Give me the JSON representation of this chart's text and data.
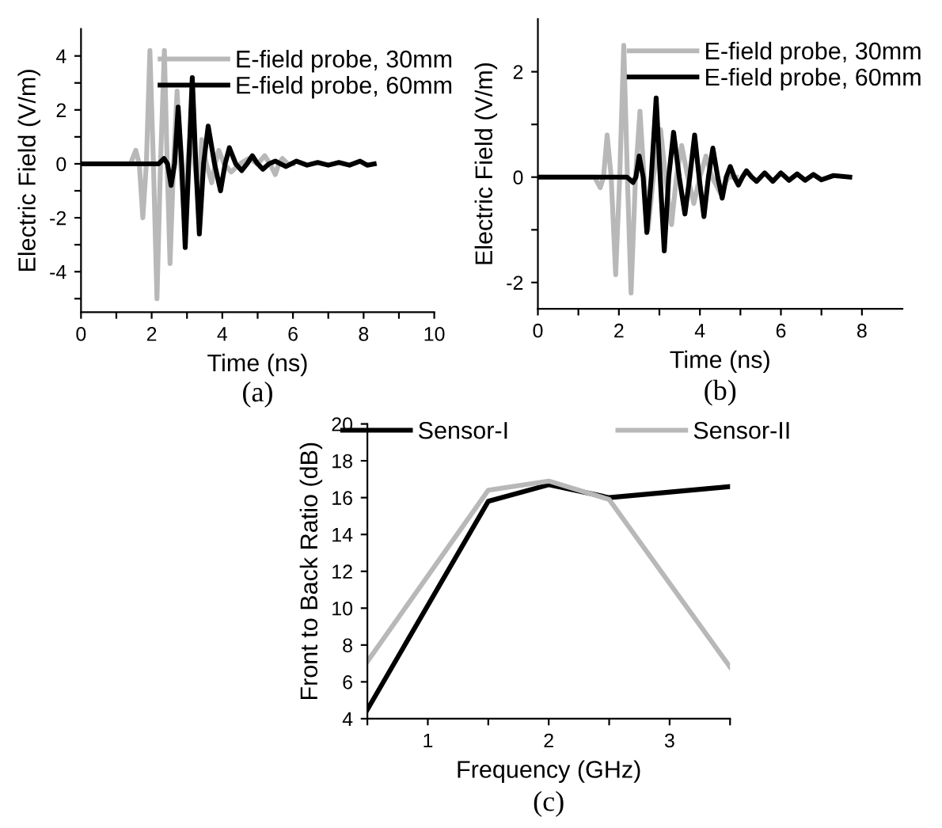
{
  "chart_data": [
    {
      "type": "line",
      "xlabel": "Time (ns)",
      "ylabel": "Electric Field (V/m)",
      "annotations": [
        "(a)"
      ],
      "legend": "top right",
      "grid": false,
      "line_style": "solid",
      "marker": "none",
      "xlim": [
        0,
        10
      ],
      "ylim": [
        -5.5,
        5
      ],
      "xticks": [
        0,
        {
          "value": 1,
          "label": null
        },
        2,
        {
          "value": 3,
          "label": null
        },
        4,
        {
          "value": 5,
          "label": null
        },
        6,
        {
          "value": 7,
          "label": null
        },
        8,
        {
          "value": 9,
          "label": null
        },
        10
      ],
      "yticks": [
        {
          "value": -5,
          "label": null
        },
        -4,
        {
          "value": -3,
          "label": null
        },
        -2,
        {
          "value": -1,
          "label": null
        },
        0,
        {
          "value": 1,
          "label": null
        },
        2,
        {
          "value": 3,
          "label": null
        },
        4
      ],
      "series": [
        {
          "name": "E-field probe, 30mm",
          "color": "#b8b8b8",
          "x": [
            0,
            1.4,
            1.55,
            1.65,
            1.75,
            1.85,
            1.95,
            2.05,
            2.15,
            2.25,
            2.36,
            2.44,
            2.52,
            2.62,
            2.72,
            2.82,
            2.92,
            3.02,
            3.12,
            3.22,
            3.32,
            3.42,
            3.55,
            3.7,
            3.8,
            3.9,
            4.05,
            4.25,
            4.5,
            4.75,
            5.0,
            5.2,
            5.35,
            5.5,
            5.6,
            5.7,
            5.85,
            6.0
          ],
          "values": [
            0,
            0,
            0.5,
            0,
            -2,
            0,
            4.2,
            0,
            -5,
            0,
            4.2,
            0,
            -3.7,
            0,
            2.7,
            0,
            -2,
            0,
            1.5,
            0,
            -1.2,
            0.9,
            0,
            -0.7,
            0,
            0.5,
            0,
            -0.3,
            0,
            0.2,
            0,
            0.3,
            0,
            -0.4,
            0,
            0.2,
            0,
            0
          ]
        },
        {
          "name": "E-field probe, 60mm",
          "color": "#000000",
          "x": [
            0,
            2.2,
            2.35,
            2.45,
            2.55,
            2.65,
            2.75,
            2.85,
            2.95,
            3.05,
            3.15,
            3.25,
            3.35,
            3.47,
            3.6,
            3.78,
            3.95,
            4.08,
            4.2,
            4.38,
            4.55,
            4.7,
            4.85,
            5.0,
            5.15,
            5.32,
            5.5,
            5.65,
            5.8,
            5.95,
            6.1,
            6.4,
            6.7,
            7.0,
            7.3,
            7.6,
            7.9,
            8.1,
            8.3
          ],
          "values": [
            0,
            0,
            0.2,
            0,
            -0.8,
            0,
            2.1,
            0,
            -3.1,
            0,
            3.2,
            0,
            -2.6,
            0,
            1.4,
            0,
            -1.0,
            0,
            0.6,
            0,
            -0.25,
            0,
            0.3,
            0,
            -0.2,
            0,
            0.1,
            0,
            -0.1,
            0,
            0.1,
            -0.05,
            0.05,
            -0.05,
            0.05,
            -0.05,
            0.1,
            -0.05,
            0
          ]
        }
      ]
    },
    {
      "type": "line",
      "xlabel": "Time (ns)",
      "ylabel": "Electric Field (V/m)",
      "annotations": [
        "(b)"
      ],
      "legend": "top right",
      "grid": false,
      "line_style": "solid",
      "marker": "none",
      "xlim": [
        0,
        9
      ],
      "ylim": [
        -2.5,
        3
      ],
      "xticks": [
        0,
        {
          "value": 1,
          "label": null
        },
        2,
        {
          "value": 3,
          "label": null
        },
        4,
        {
          "value": 5,
          "label": null
        },
        6,
        {
          "value": 7,
          "label": null
        },
        8
      ],
      "yticks": [
        -2,
        {
          "value": -1,
          "label": null
        },
        0,
        {
          "value": 1,
          "label": null
        },
        2
      ],
      "series": [
        {
          "name": "E-field probe, 30mm",
          "color": "#b8b8b8",
          "x": [
            0,
            1.4,
            1.54,
            1.62,
            1.71,
            1.81,
            1.92,
            2.02,
            2.12,
            2.21,
            2.3,
            2.41,
            2.52,
            2.62,
            2.72,
            2.85,
            3.03,
            3.15,
            3.3,
            3.42,
            3.55,
            3.7,
            3.85,
            4.0,
            4.15,
            4.3,
            4.5,
            4.7,
            4.9
          ],
          "values": [
            0,
            0,
            -0.2,
            0,
            0.8,
            0,
            -1.85,
            0,
            2.5,
            0,
            -2.2,
            0,
            1.25,
            0,
            -1.0,
            0,
            0.9,
            0,
            -0.9,
            0,
            0.6,
            0,
            -0.5,
            0,
            0.4,
            0,
            -0.3,
            0,
            0
          ]
        },
        {
          "name": "E-field probe, 60mm",
          "color": "#000000",
          "x": [
            0,
            2.2,
            2.35,
            2.42,
            2.5,
            2.6,
            2.69,
            2.8,
            2.92,
            3.02,
            3.12,
            3.23,
            3.35,
            3.49,
            3.63,
            3.75,
            3.87,
            3.98,
            4.1,
            4.21,
            4.32,
            4.44,
            4.55,
            4.65,
            4.75,
            4.85,
            4.95,
            5.05,
            5.15,
            5.28,
            5.4,
            5.6,
            5.8,
            6.0,
            6.2,
            6.4,
            6.6,
            6.8,
            7.0,
            7.3,
            7.7
          ],
          "values": [
            0,
            0,
            -0.1,
            0,
            0.4,
            0,
            -1.05,
            0,
            1.5,
            0,
            -1.4,
            0,
            0.85,
            0,
            -0.7,
            0,
            0.8,
            0,
            -0.75,
            0,
            0.55,
            0,
            -0.4,
            0,
            0.2,
            0,
            -0.15,
            0,
            0.12,
            0,
            -0.08,
            0.08,
            -0.08,
            0.08,
            -0.06,
            0.06,
            -0.06,
            0.05,
            -0.05,
            0.03,
            0
          ]
        }
      ]
    },
    {
      "type": "line",
      "xlabel": "Frequency (GHz)",
      "ylabel": "Front to Back Ratio (dB)",
      "annotations": [
        "(c)"
      ],
      "legend": "top",
      "grid": false,
      "line_style": "solid",
      "marker": "none",
      "xlim": [
        0.5,
        3.5
      ],
      "ylim": [
        4,
        20
      ],
      "xticks": [
        {
          "value": 0.5,
          "label": null
        },
        1,
        {
          "value": 1.5,
          "label": null
        },
        2,
        {
          "value": 2.5,
          "label": null
        },
        3,
        {
          "value": 3.5,
          "label": null
        }
      ],
      "yticks": [
        4,
        6,
        8,
        10,
        12,
        14,
        16,
        18,
        20
      ],
      "x": [
        0.5,
        1.5,
        2,
        2.5,
        3.5
      ],
      "series": [
        {
          "name": "Sensor-I",
          "color": "#000000",
          "values": [
            4.5,
            15.8,
            16.7,
            16.0,
            16.6
          ]
        },
        {
          "name": "Sensor-II",
          "color": "#b8b8b8",
          "values": [
            7.1,
            16.4,
            16.9,
            15.9,
            6.8
          ]
        }
      ]
    }
  ]
}
